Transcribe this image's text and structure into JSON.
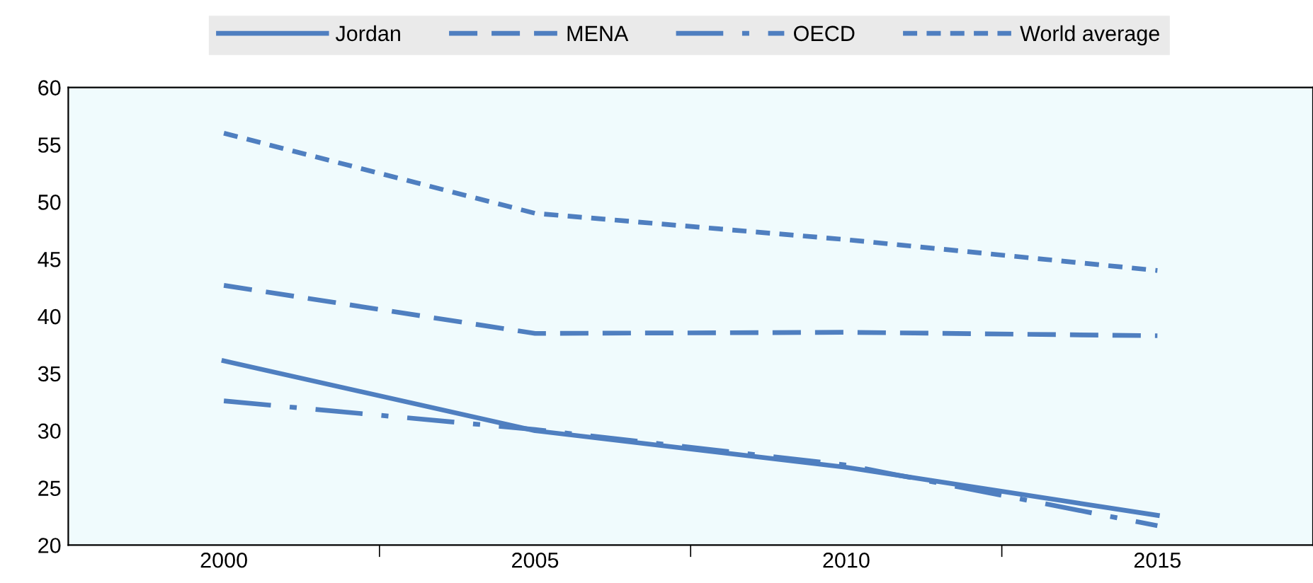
{
  "chart_data": {
    "type": "line",
    "categories": [
      "2000",
      "2005",
      "2010",
      "2015"
    ],
    "series": [
      {
        "name": "Jordan",
        "color": "#4f7fc0",
        "line_style": "solid",
        "values": [
          36.1,
          30.0,
          26.8,
          22.6
        ]
      },
      {
        "name": "MENA",
        "color": "#4f7fc0",
        "line_style": "dashed",
        "values": [
          42.7,
          38.5,
          38.6,
          38.3
        ]
      },
      {
        "name": "OECD",
        "color": "#4f7fc0",
        "line_style": "dashdot",
        "values": [
          32.6,
          30.1,
          27.0,
          21.7
        ]
      },
      {
        "name": "World average",
        "color": "#4f7fc0",
        "line_style": "dotted",
        "values": [
          56.0,
          49.0,
          46.7,
          44.0
        ]
      }
    ],
    "ylim": [
      20,
      60
    ],
    "yticks": [
      20,
      25,
      30,
      35,
      40,
      45,
      50,
      55,
      60
    ],
    "grid": false,
    "legend": "top",
    "marker": "none"
  }
}
